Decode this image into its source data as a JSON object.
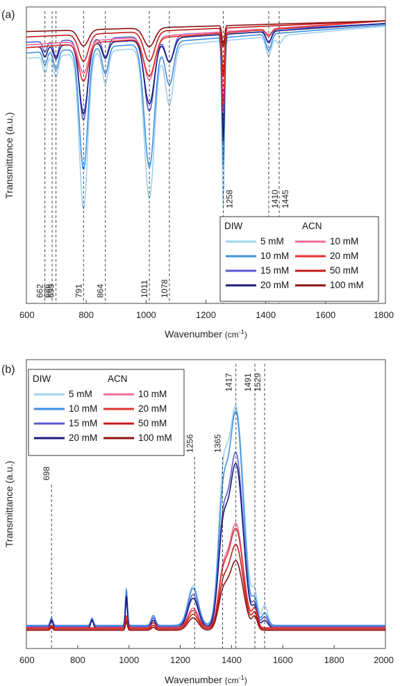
{
  "chart_data": [
    {
      "panel": "(a)",
      "type": "line",
      "xlabel": "Wavenumber",
      "xunit": "(cm",
      "xunit_sup": "-1",
      "xunit_close": ")",
      "ylabel": "Transmittance (a.u.)",
      "xlim": [
        600,
        1800
      ],
      "xticks": [
        "600",
        "800",
        "1000",
        "1200",
        "1400",
        "1600",
        "1800"
      ],
      "vlines": [
        {
          "x": 662,
          "label": "662"
        },
        {
          "x": 686,
          "label": "686"
        },
        {
          "x": 699,
          "label": "699"
        },
        {
          "x": 791,
          "label": "791"
        },
        {
          "x": 864,
          "label": "864"
        },
        {
          "x": 1011,
          "label": "1011"
        },
        {
          "x": 1078,
          "label": "1078"
        },
        {
          "x": 1258,
          "label": "1258"
        },
        {
          "x": 1410,
          "label": "1410"
        },
        {
          "x": 1445,
          "label": "1445"
        }
      ],
      "legend": {
        "position": "bottom-right",
        "col1_title": "DIW",
        "col2_title": "ACN",
        "col1": [
          "5 mM",
          "10 mM",
          "15 mM",
          "20 mM"
        ],
        "col2": [
          "10 mM",
          "20 mM",
          "50 mM",
          "100 mM"
        ]
      },
      "series": [
        {
          "name": "DIW 5 mM",
          "color": "#9fd0f0",
          "base": 0.14,
          "slope": 0.02,
          "bands": [
            [
              662,
              0.06,
              7
            ],
            [
              699,
              0.08,
              8
            ],
            [
              791,
              0.58,
              14
            ],
            [
              864,
              0.12,
              10
            ],
            [
              1011,
              0.56,
              17
            ],
            [
              1078,
              0.22,
              14
            ],
            [
              1258,
              0.62,
              4
            ],
            [
              1410,
              0.07,
              9
            ],
            [
              1445,
              0.03,
              10
            ]
          ]
        },
        {
          "name": "DIW 10 mM",
          "color": "#3d8fe0",
          "base": 0.12,
          "slope": 0.015,
          "bands": [
            [
              662,
              0.05,
              7
            ],
            [
              699,
              0.07,
              8
            ],
            [
              791,
              0.45,
              14
            ],
            [
              864,
              0.1,
              10
            ],
            [
              1011,
              0.46,
              17
            ],
            [
              1078,
              0.16,
              14
            ],
            [
              1258,
              0.48,
              4
            ],
            [
              1410,
              0.06,
              9
            ]
          ]
        },
        {
          "name": "DIW 15 mM",
          "color": "#5a5ad6",
          "base": 0.08,
          "slope": 0.01,
          "bands": [
            [
              662,
              0.04,
              7
            ],
            [
              699,
              0.06,
              8
            ],
            [
              791,
              0.3,
              14
            ],
            [
              864,
              0.07,
              10
            ],
            [
              1011,
              0.28,
              17
            ],
            [
              1078,
              0.1,
              14
            ],
            [
              1258,
              0.36,
              4
            ],
            [
              1410,
              0.05,
              9
            ]
          ]
        },
        {
          "name": "DIW 20 mM",
          "color": "#1a1a7e",
          "base": 0.1,
          "slope": 0.01,
          "bands": [
            [
              662,
              0.04,
              7
            ],
            [
              699,
              0.05,
              8
            ],
            [
              791,
              0.26,
              14
            ],
            [
              864,
              0.06,
              10
            ],
            [
              1011,
              0.24,
              17
            ],
            [
              1078,
              0.09,
              14
            ],
            [
              1258,
              0.4,
              4
            ],
            [
              1410,
              0.04,
              9
            ]
          ]
        },
        {
          "name": "ACN 10 mM",
          "color": "#f06e9a",
          "base": 0.09,
          "slope": 0.0,
          "bands": [
            [
              791,
              0.12,
              16
            ],
            [
              1011,
              0.16,
              18
            ],
            [
              1258,
              0.3,
              4
            ],
            [
              1410,
              0.03,
              9
            ]
          ]
        },
        {
          "name": "ACN 20 mM",
          "color": "#e0302c",
          "base": 0.1,
          "slope": 0.0,
          "bands": [
            [
              791,
              0.14,
              16
            ],
            [
              1011,
              0.14,
              18
            ],
            [
              1258,
              0.28,
              4
            ],
            [
              1410,
              0.02,
              9
            ]
          ]
        },
        {
          "name": "ACN 50 mM",
          "color": "#c51b1b",
          "base": 0.06,
          "slope": 0.0,
          "bands": [
            [
              791,
              0.1,
              16
            ],
            [
              1011,
              0.11,
              18
            ],
            [
              1258,
              0.18,
              4
            ]
          ]
        },
        {
          "name": "ACN 100 mM",
          "color": "#8c1010",
          "base": 0.04,
          "slope": 0.0,
          "bands": [
            [
              791,
              0.06,
              16
            ],
            [
              1011,
              0.07,
              18
            ],
            [
              1258,
              0.08,
              4
            ]
          ]
        }
      ]
    },
    {
      "panel": "(b)",
      "type": "line",
      "xlabel": "Wavenumber",
      "xunit": "(cm",
      "xunit_sup": "-1",
      "xunit_close": ")",
      "ylabel": "Transmittance (a.u.)",
      "xlim": [
        600,
        2000
      ],
      "xticks": [
        "600",
        "800",
        "1000",
        "1200",
        "1400",
        "1600",
        "1800",
        "2000"
      ],
      "vlines": [
        {
          "x": 698,
          "label": "698"
        },
        {
          "x": 1256,
          "label": "1256"
        },
        {
          "x": 1365,
          "label": "1365"
        },
        {
          "x": 1417,
          "label": "1417"
        },
        {
          "x": 1491,
          "label": "1491"
        },
        {
          "x": 1529,
          "label": "1529"
        }
      ],
      "legend": {
        "position": "top-left",
        "col1_title": "DIW",
        "col2_title": "ACN",
        "col1": [
          "5 mM",
          "10 mM",
          "15 mM",
          "20 mM"
        ],
        "col2": [
          "10 mM",
          "20 mM",
          "50 mM",
          "100 mM"
        ]
      },
      "series": [
        {
          "name": "DIW 5 mM",
          "color": "#9fd0f0",
          "base": 0.06,
          "bands": [
            [
              698,
              0.03,
              5
            ],
            [
              856,
              0.03,
              5
            ],
            [
              990,
              0.12,
              4
            ],
            [
              1095,
              0.04,
              8
            ],
            [
              1250,
              0.16,
              20
            ],
            [
              1365,
              0.45,
              18
            ],
            [
              1417,
              0.88,
              30
            ],
            [
              1491,
              0.11,
              10
            ],
            [
              1529,
              0.08,
              12
            ]
          ]
        },
        {
          "name": "DIW 10 mM",
          "color": "#3d8fe0",
          "base": 0.06,
          "bands": [
            [
              698,
              0.03,
              5
            ],
            [
              856,
              0.03,
              5
            ],
            [
              990,
              0.15,
              4
            ],
            [
              1095,
              0.04,
              8
            ],
            [
              1250,
              0.15,
              20
            ],
            [
              1365,
              0.42,
              18
            ],
            [
              1417,
              0.86,
              28
            ],
            [
              1491,
              0.09,
              10
            ],
            [
              1529,
              0.05,
              12
            ]
          ]
        },
        {
          "name": "DIW 15 mM",
          "color": "#5a5ad6",
          "base": 0.055,
          "bands": [
            [
              698,
              0.03,
              5
            ],
            [
              856,
              0.03,
              5
            ],
            [
              990,
              0.1,
              4
            ],
            [
              1095,
              0.035,
              8
            ],
            [
              1250,
              0.13,
              20
            ],
            [
              1365,
              0.34,
              18
            ],
            [
              1417,
              0.7,
              28
            ],
            [
              1491,
              0.08,
              10
            ],
            [
              1529,
              0.04,
              12
            ]
          ]
        },
        {
          "name": "DIW 20 mM",
          "color": "#1a1a7e",
          "base": 0.05,
          "bands": [
            [
              698,
              0.03,
              5
            ],
            [
              856,
              0.03,
              5
            ],
            [
              990,
              0.13,
              4
            ],
            [
              1095,
              0.03,
              8
            ],
            [
              1250,
              0.12,
              20
            ],
            [
              1365,
              0.32,
              18
            ],
            [
              1417,
              0.66,
              28
            ],
            [
              1491,
              0.07,
              10
            ],
            [
              1529,
              0.03,
              12
            ]
          ]
        },
        {
          "name": "ACN 10 mM",
          "color": "#f06e9a",
          "base": 0.05,
          "bands": [
            [
              698,
              0.01,
              5
            ],
            [
              990,
              0.05,
              4
            ],
            [
              1095,
              0.02,
              8
            ],
            [
              1250,
              0.08,
              20
            ],
            [
              1365,
              0.18,
              18
            ],
            [
              1417,
              0.42,
              28
            ],
            [
              1491,
              0.07,
              10
            ]
          ]
        },
        {
          "name": "ACN 20 mM",
          "color": "#e0302c",
          "base": 0.05,
          "bands": [
            [
              698,
              0.01,
              5
            ],
            [
              990,
              0.05,
              4
            ],
            [
              1095,
              0.02,
              8
            ],
            [
              1250,
              0.07,
              20
            ],
            [
              1365,
              0.17,
              18
            ],
            [
              1417,
              0.4,
              28
            ],
            [
              1491,
              0.07,
              10
            ]
          ]
        },
        {
          "name": "ACN 50 mM",
          "color": "#c51b1b",
          "base": 0.045,
          "bands": [
            [
              698,
              0.01,
              5
            ],
            [
              990,
              0.04,
              4
            ],
            [
              1095,
              0.015,
              8
            ],
            [
              1250,
              0.06,
              20
            ],
            [
              1365,
              0.14,
              18
            ],
            [
              1417,
              0.34,
              28
            ],
            [
              1491,
              0.06,
              10
            ]
          ]
        },
        {
          "name": "ACN 100 mM",
          "color": "#8c1010",
          "base": 0.04,
          "bands": [
            [
              698,
              0.01,
              5
            ],
            [
              990,
              0.035,
              4
            ],
            [
              1095,
              0.012,
              8
            ],
            [
              1250,
              0.05,
              20
            ],
            [
              1365,
              0.12,
              18
            ],
            [
              1417,
              0.28,
              28
            ],
            [
              1491,
              0.05,
              10
            ]
          ]
        }
      ]
    }
  ]
}
